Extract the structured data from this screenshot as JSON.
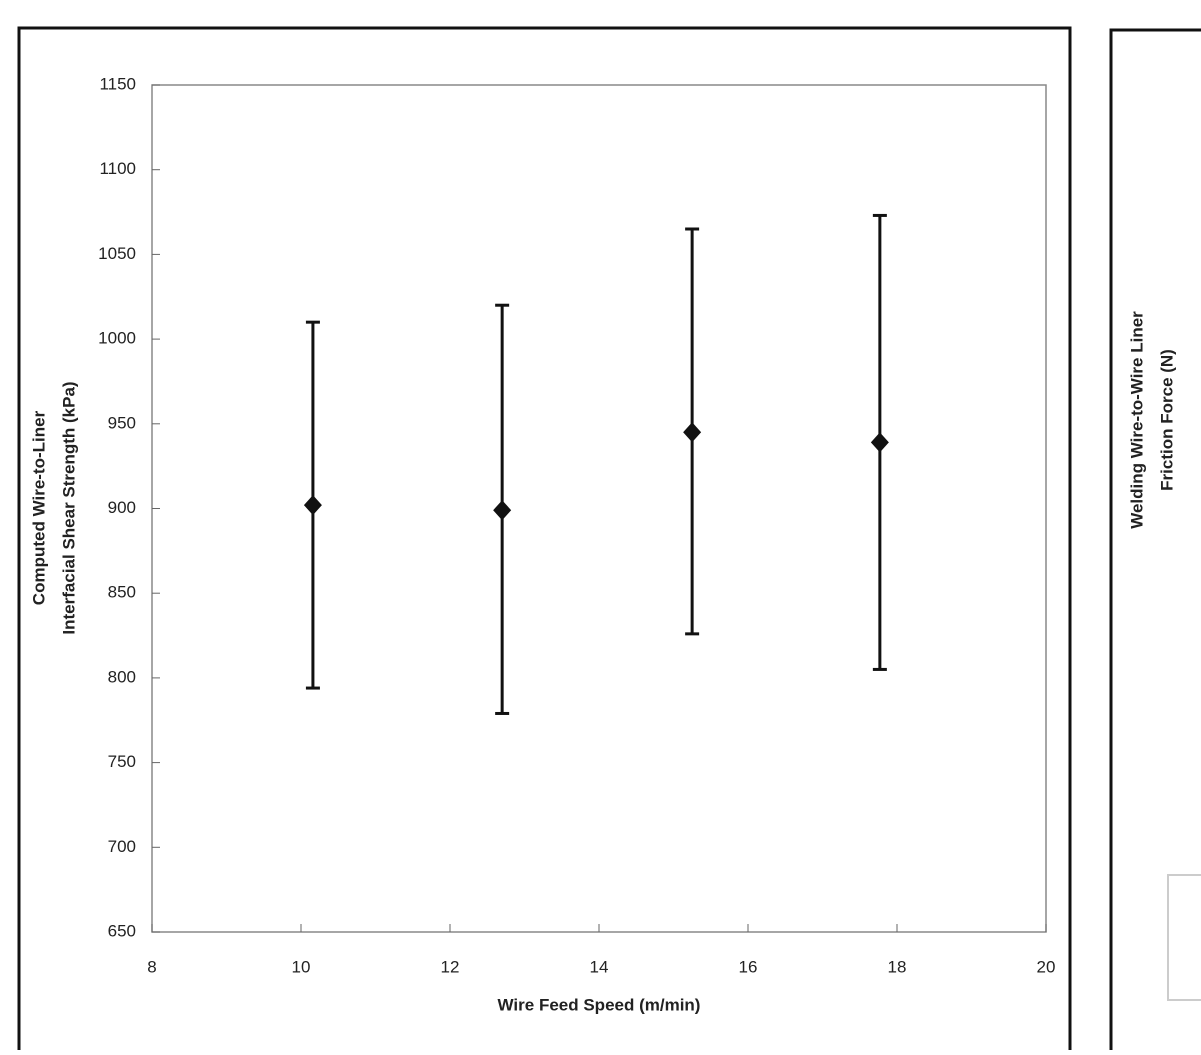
{
  "chart_data": [
    {
      "type": "errorbar",
      "ylabel": [
        "Computed Wire-to-Liner",
        "Interfacial Shear Strength (kPa)"
      ],
      "xlabel": "Wire Feed Speed (m/min)",
      "xlim": [
        8,
        20
      ],
      "xticks": [
        8,
        10,
        12,
        14,
        16,
        18,
        20
      ],
      "ylim": [
        650,
        1150
      ],
      "yticks": [
        650,
        700,
        750,
        800,
        850,
        900,
        950,
        1000,
        1050,
        1100,
        1150
      ],
      "color": "#111111",
      "x": [
        10.16,
        12.7,
        15.25,
        17.77
      ],
      "values": [
        902,
        899,
        945,
        939
      ],
      "upper": [
        1010,
        1020,
        1065,
        1073
      ],
      "lower": [
        794,
        779,
        826,
        805
      ]
    },
    {
      "type": "cropped",
      "ylabel": [
        "Welding Wire-to-Wire Liner",
        "Friction Force (N)"
      ]
    }
  ]
}
